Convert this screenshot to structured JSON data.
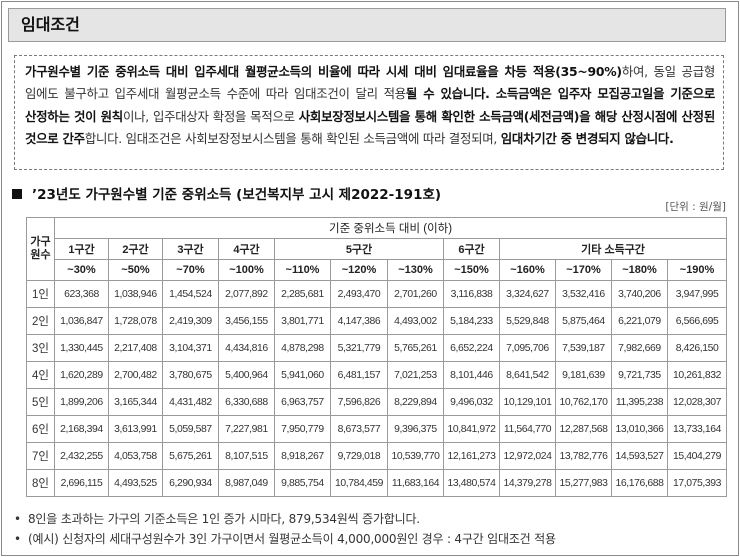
{
  "title": "임대조건",
  "notice": {
    "p1": "가구원수별 기준 중위소득 대비 입주세대 월평균소득의 비율에 따라 시세 대비 임대료율을 차등 적용(35~90%)",
    "p2": "하여, 동일 공급형 임에도 불구하고 입주세대 월평균소득 수준에 따라 임대조건이 달리 적용",
    "p3": "될 수 있습니다. ",
    "p4": "소득금액은 입주자 모집공고일을 기준으로 산정하는 것이 원칙",
    "p5": "이나, 입주대상자 확정을 목적으로 ",
    "p6": "사회보장정보시스템을 통해 확인한 소득금액(세전금액)을 해당 산정시점에 산정된 것으로 간주",
    "p7": "합니다. 임대조건은 사회보장정보시스템을 통해 확인된 소득금액에 따라 결정되며, ",
    "p8": "임대차기간 중 변경되지 않습니다."
  },
  "section_title": "’23년도 가구원수별 기준 중위소득 (보건복지부 고시 제2022-191호)",
  "unit": "[단위 : 원/월]",
  "table": {
    "corner": "가구원수",
    "group_header": "기준 중위소득 대비 (이하)",
    "tiers": [
      "1구간",
      "2구간",
      "3구간",
      "4구간",
      "5구간",
      "6구간",
      "기타 소득구간"
    ],
    "pcts": [
      "~30%",
      "~50%",
      "~70%",
      "~100%",
      "~110%",
      "~120%",
      "~130%",
      "~150%",
      "~160%",
      "~170%",
      "~180%",
      "~190%"
    ],
    "rows": [
      {
        "label": "1인",
        "values": [
          "623,368",
          "1,038,946",
          "1,454,524",
          "2,077,892",
          "2,285,681",
          "2,493,470",
          "2,701,260",
          "3,116,838",
          "3,324,627",
          "3,532,416",
          "3,740,206",
          "3,947,995"
        ]
      },
      {
        "label": "2인",
        "values": [
          "1,036,847",
          "1,728,078",
          "2,419,309",
          "3,456,155",
          "3,801,771",
          "4,147,386",
          "4,493,002",
          "5,184,233",
          "5,529,848",
          "5,875,464",
          "6,221,079",
          "6,566,695"
        ]
      },
      {
        "label": "3인",
        "values": [
          "1,330,445",
          "2,217,408",
          "3,104,371",
          "4,434,816",
          "4,878,298",
          "5,321,779",
          "5,765,261",
          "6,652,224",
          "7,095,706",
          "7,539,187",
          "7,982,669",
          "8,426,150"
        ]
      },
      {
        "label": "4인",
        "values": [
          "1,620,289",
          "2,700,482",
          "3,780,675",
          "5,400,964",
          "5,941,060",
          "6,481,157",
          "7,021,253",
          "8,101,446",
          "8,641,542",
          "9,181,639",
          "9,721,735",
          "10,261,832"
        ]
      },
      {
        "label": "5인",
        "values": [
          "1,899,206",
          "3,165,344",
          "4,431,482",
          "6,330,688",
          "6,963,757",
          "7,596,826",
          "8,229,894",
          "9,496,032",
          "10,129,101",
          "10,762,170",
          "11,395,238",
          "12,028,307"
        ]
      },
      {
        "label": "6인",
        "values": [
          "2,168,394",
          "3,613,991",
          "5,059,587",
          "7,227,981",
          "7,950,779",
          "8,673,577",
          "9,396,375",
          "10,841,972",
          "11,564,770",
          "12,287,568",
          "13,010,366",
          "13,733,164"
        ]
      },
      {
        "label": "7인",
        "values": [
          "2,432,255",
          "4,053,758",
          "5,675,261",
          "8,107,515",
          "8,918,267",
          "9,729,018",
          "10,539,770",
          "12,161,273",
          "12,972,024",
          "13,782,776",
          "14,593,527",
          "15,404,279"
        ]
      },
      {
        "label": "8인",
        "values": [
          "2,696,115",
          "4,493,525",
          "6,290,934",
          "8,987,049",
          "9,885,754",
          "10,784,459",
          "11,683,164",
          "13,480,574",
          "14,379,278",
          "15,277,983",
          "16,176,688",
          "17,075,393"
        ]
      }
    ]
  },
  "notes": [
    "8인을 초과하는 가구의 기준소득은 1인 증가 시마다, 879,534원씩 증가합니다.",
    "(예시) 신청자의 세대구성원수가 3인 가구이면서 월평균소득이 4,000,000원인 경우 : 4구간 임대조건 적용"
  ],
  "bullet": "•"
}
